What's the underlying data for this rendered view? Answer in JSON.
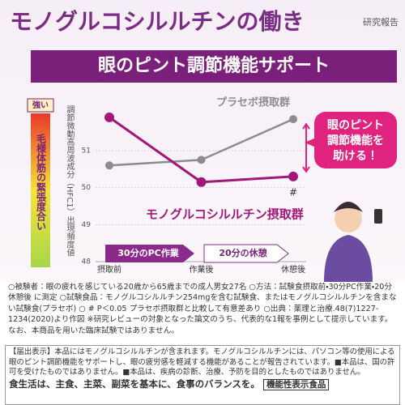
{
  "header": {
    "title": "モノグルコシルルチンの働き",
    "tag": "研究報告"
  },
  "chart_data": {
    "type": "line",
    "title": "眼のピント調節機能サポート",
    "y_label": "調節微動高周波成分（HFC1）出現頻度値",
    "categories": [
      "摂取前",
      "作業後",
      "休憩後"
    ],
    "series": [
      {
        "name": "プラセボ摂取群",
        "color": "#8c8c8c",
        "values": [
          50.6,
          50.75,
          51.85
        ]
      },
      {
        "name": "モノグルコシルルチン摂取群",
        "color": "#a3177a",
        "values": [
          51.9,
          50.15,
          50.3
        ]
      }
    ],
    "ylim": [
      48,
      52.4
    ],
    "yticks": [
      48,
      49,
      50,
      51
    ],
    "grid": true,
    "annotations": [
      "#"
    ],
    "phases": [
      "30分のPC作業",
      "20分の休憩"
    ],
    "scale_label": "強い",
    "scale_title": "毛様体筋の緊張度合い",
    "callout": [
      "眼のピント",
      "調節機能を",
      "助ける！"
    ]
  },
  "notes": "○被験者：眼の疲れを感じている20歳から65歳までの成人男女27名 ○方法：試験食摂取前・30分PC作業・20分休憩後 に測定 ○試験食品：モノグルコシルルチン254mgを含む試験食、またはモノグルコシルルチンを含まない試験食(プラセボ) ○ # P＜0.05 プラセボ摂取群と比較して有意差あり ○出典：薬理と治療.48(7)1227-1234(2020)より作図 ※研究レビューの対象となった論文のうち、代表的な1報を事例として提示しています。なお、本商品を用いた臨床試験ではありません。",
  "notice": {
    "text": "【届出表示】本品にはモノグルコシルルチンが含まれます。モノグルコシルルチンには、パソコン等の使用による眼のピント調節機能をサポートし、眼の疲労感を軽減する機能があることが報告されています。■本品は、国の許可を受けたものではありません。■本品は、疾病の診断、治療、予防を目的としたものではありません。",
    "slogan": "食生活は、主食、主菜、副菜を基本に、食事のバランスを。",
    "badge": "機能性表示食品"
  }
}
